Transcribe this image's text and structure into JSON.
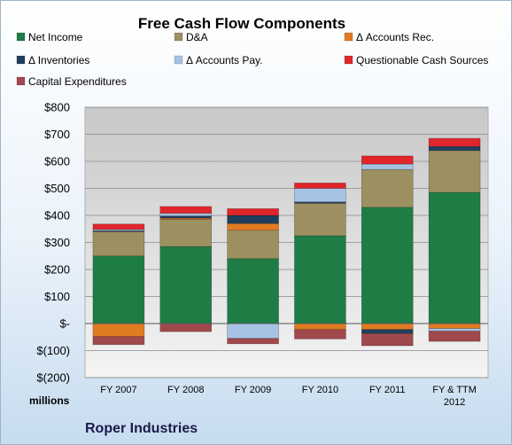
{
  "chart_data": {
    "type": "bar",
    "stacked": true,
    "title": "Free Cash Flow Components",
    "categories": [
      "FY 2007",
      "FY 2008",
      "FY 2009",
      "FY 2010",
      "FY 2011",
      "FY & TTM 2012"
    ],
    "y_ticks": [
      "$800",
      "$700",
      "$600",
      "$500",
      "$400",
      "$300",
      "$200",
      "$100",
      "$-",
      "$(100)",
      "$(200)"
    ],
    "ylim": [
      -200,
      800
    ],
    "units_label": "millions",
    "footer": "Roper Industries",
    "grid": true,
    "legend_position": "top",
    "series": [
      {
        "name": "Net Income",
        "color": "#1e7d45",
        "values": [
          250,
          285,
          240,
          325,
          430,
          485
        ]
      },
      {
        "name": "D&A",
        "color": "#9c9061",
        "values": [
          90,
          100,
          105,
          120,
          140,
          155
        ]
      },
      {
        "name": "Δ Accounts Rec.",
        "color": "#e07b22",
        "values": [
          -48,
          5,
          25,
          -22,
          -22,
          -18
        ]
      },
      {
        "name": "Δ Inventories",
        "color": "#203f5e",
        "values": [
          3,
          8,
          30,
          5,
          -15,
          15
        ]
      },
      {
        "name": "Δ Accounts Pay.",
        "color": "#a7c3e3",
        "values": [
          5,
          10,
          -55,
          50,
          20,
          -10
        ]
      },
      {
        "name": "Questionable Cash Sources",
        "color": "#e0262b",
        "values": [
          20,
          25,
          25,
          20,
          30,
          30
        ]
      },
      {
        "name": "Capital Expenditures",
        "color": "#a0494c",
        "values": [
          -30,
          -30,
          -20,
          -35,
          -45,
          -38
        ]
      }
    ]
  }
}
